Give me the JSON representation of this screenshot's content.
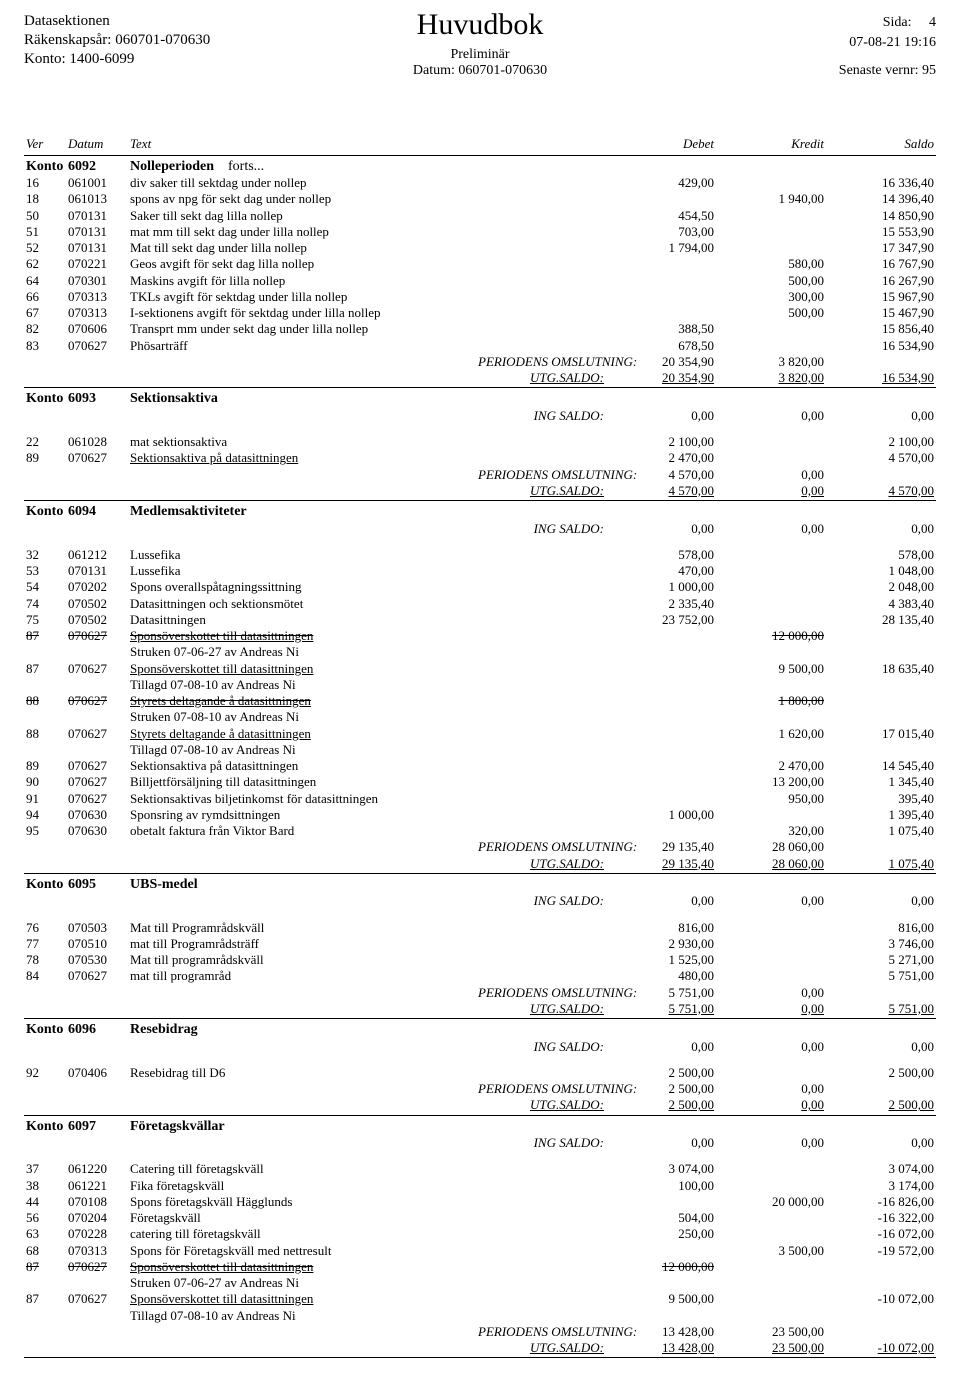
{
  "header": {
    "org": "Datasektionen",
    "year": "Räkenskapsår: 060701-070630",
    "acct": "Konto: 1400-6099",
    "title": "Huvudbok",
    "sub": "Preliminär",
    "date_label": "Datum: 060701-070630",
    "side_label": "Sida:",
    "side_no": "4",
    "timestamp": "07-08-21  19:16",
    "vernr": "Senaste vernr: 95"
  },
  "cols": {
    "ver": "Ver",
    "datum": "Datum",
    "text": "Text",
    "debet": "Debet",
    "kredit": "Kredit",
    "saldo": "Saldo"
  },
  "labels": {
    "ing": "ING SALDO:",
    "per": "PERIODENS OMSLUTNING:",
    "utg": "UTG.SALDO:",
    "konto": "Konto",
    "forts": "forts..."
  },
  "accounts": [
    {
      "no": "6092",
      "name": "Nolleperioden",
      "forts": true,
      "ing": null,
      "rows": [
        {
          "v": "16",
          "d": "061001",
          "t": "div saker till sektdag under nollep",
          "deb": "429,00",
          "kre": "",
          "sal": "16 336,40"
        },
        {
          "v": "18",
          "d": "061013",
          "t": "spons av npg för sekt dag under nollep",
          "deb": "",
          "kre": "1 940,00",
          "sal": "14 396,40"
        },
        {
          "v": "50",
          "d": "070131",
          "t": "Saker till sekt dag lilla nollep",
          "deb": "454,50",
          "kre": "",
          "sal": "14 850,90"
        },
        {
          "v": "51",
          "d": "070131",
          "t": "mat mm till sekt dag under lilla nollep",
          "deb": "703,00",
          "kre": "",
          "sal": "15 553,90"
        },
        {
          "v": "52",
          "d": "070131",
          "t": "Mat till sekt dag under lilla nollep",
          "deb": "1 794,00",
          "kre": "",
          "sal": "17 347,90"
        },
        {
          "v": "62",
          "d": "070221",
          "t": "Geos avgift för sekt dag lilla nollep",
          "deb": "",
          "kre": "580,00",
          "sal": "16 767,90"
        },
        {
          "v": "64",
          "d": "070301",
          "t": "Maskins avgift för lilla nollep",
          "deb": "",
          "kre": "500,00",
          "sal": "16 267,90"
        },
        {
          "v": "66",
          "d": "070313",
          "t": "TKLs avgift för sektdag under lilla nollep",
          "deb": "",
          "kre": "300,00",
          "sal": "15 967,90"
        },
        {
          "v": "67",
          "d": "070313",
          "t": "I-sektionens avgift för sektdag under lilla nollep",
          "deb": "",
          "kre": "500,00",
          "sal": "15 467,90"
        },
        {
          "v": "82",
          "d": "070606",
          "t": "Transprt mm under sekt dag under lilla nollep",
          "deb": "388,50",
          "kre": "",
          "sal": "15 856,40"
        },
        {
          "v": "83",
          "d": "070627",
          "t": "Phösarträff",
          "deb": "678,50",
          "kre": "",
          "sal": "16 534,90"
        }
      ],
      "per": {
        "deb": "20 354,90",
        "kre": "3 820,00"
      },
      "utg": {
        "deb": "20 354,90",
        "kre": "3 820,00",
        "sal": "16 534,90"
      }
    },
    {
      "no": "6093",
      "name": "Sektionsaktiva",
      "ing": {
        "deb": "0,00",
        "kre": "0,00",
        "sal": "0,00"
      },
      "rows": [
        {
          "v": "22",
          "d": "061028",
          "t": "mat sektionsaktiva",
          "deb": "2 100,00",
          "kre": "",
          "sal": "2 100,00"
        },
        {
          "v": "89",
          "d": "070627",
          "t": "Sektionsaktiva på datasittningen",
          "deb": "2 470,00",
          "kre": "",
          "sal": "4 570,00",
          "ul": true
        }
      ],
      "per": {
        "deb": "4 570,00",
        "kre": "0,00"
      },
      "utg": {
        "deb": "4 570,00",
        "kre": "0,00",
        "sal": "4 570,00"
      }
    },
    {
      "no": "6094",
      "name": "Medlemsaktiviteter",
      "ing": {
        "deb": "0,00",
        "kre": "0,00",
        "sal": "0,00"
      },
      "rows": [
        {
          "v": "32",
          "d": "061212",
          "t": "Lussefika",
          "deb": "578,00",
          "kre": "",
          "sal": "578,00"
        },
        {
          "v": "53",
          "d": "070131",
          "t": "Lussefika",
          "deb": "470,00",
          "kre": "",
          "sal": "1 048,00"
        },
        {
          "v": "54",
          "d": "070202",
          "t": "Spons overallspåtagningssittning",
          "deb": "1 000,00",
          "kre": "",
          "sal": "2 048,00"
        },
        {
          "v": "74",
          "d": "070502",
          "t": "Datasittningen och sektionsmötet",
          "deb": "2 335,40",
          "kre": "",
          "sal": "4 383,40"
        },
        {
          "v": "75",
          "d": "070502",
          "t": "Datasittningen",
          "deb": "23 752,00",
          "kre": "",
          "sal": "28 135,40"
        },
        {
          "v": "87",
          "d": "070627",
          "t": "Sponsöverskottet till datasittningen",
          "deb": "",
          "kre": "12 000,00",
          "sal": "",
          "strike": true,
          "ul": true
        },
        {
          "note": true,
          "t": "Struken 07-06-27 av Andreas Ni"
        },
        {
          "v": "87",
          "d": "070627",
          "t": "Sponsöverskottet till datasittningen",
          "deb": "",
          "kre": "9 500,00",
          "sal": "18 635,40",
          "ul": true
        },
        {
          "note": true,
          "t": "Tillagd 07-08-10 av Andreas Ni"
        },
        {
          "v": "88",
          "d": "070627",
          "t": "Styrets deltagande å datasittningen",
          "deb": "",
          "kre": "1 800,00",
          "sal": "",
          "strike": true,
          "ul": true
        },
        {
          "note": true,
          "t": "Struken 07-08-10 av Andreas Ni"
        },
        {
          "v": "88",
          "d": "070627",
          "t": "Styrets deltagande å datasittningen",
          "deb": "",
          "kre": "1 620,00",
          "sal": "17 015,40",
          "ul": true
        },
        {
          "note": true,
          "t": "Tillagd 07-08-10 av Andreas Ni"
        },
        {
          "v": "89",
          "d": "070627",
          "t": "Sektionsaktiva på datasittningen",
          "deb": "",
          "kre": "2 470,00",
          "sal": "14 545,40"
        },
        {
          "v": "90",
          "d": "070627",
          "t": "Billjettförsäljning till datasittningen",
          "deb": "",
          "kre": "13 200,00",
          "sal": "1 345,40"
        },
        {
          "v": "91",
          "d": "070627",
          "t": "Sektionsaktivas biljetinkomst för datasittningen",
          "deb": "",
          "kre": "950,00",
          "sal": "395,40"
        },
        {
          "v": "94",
          "d": "070630",
          "t": "Sponsring av rymdsittningen",
          "deb": "1 000,00",
          "kre": "",
          "sal": "1 395,40"
        },
        {
          "v": "95",
          "d": "070630",
          "t": "obetalt faktura från Viktor Bard",
          "deb": "",
          "kre": "320,00",
          "sal": "1 075,40"
        }
      ],
      "per": {
        "deb": "29 135,40",
        "kre": "28 060,00"
      },
      "utg": {
        "deb": "29 135,40",
        "kre": "28 060,00",
        "sal": "1 075,40"
      }
    },
    {
      "no": "6095",
      "name": "UBS-medel",
      "ing": {
        "deb": "0,00",
        "kre": "0,00",
        "sal": "0,00"
      },
      "rows": [
        {
          "v": "76",
          "d": "070503",
          "t": "Mat till Programrådskväll",
          "deb": "816,00",
          "kre": "",
          "sal": "816,00"
        },
        {
          "v": "77",
          "d": "070510",
          "t": "mat till Programrådsträff",
          "deb": "2 930,00",
          "kre": "",
          "sal": "3 746,00"
        },
        {
          "v": "78",
          "d": "070530",
          "t": "Mat till programrådskväll",
          "deb": "1 525,00",
          "kre": "",
          "sal": "5 271,00"
        },
        {
          "v": "84",
          "d": "070627",
          "t": "mat till programråd",
          "deb": "480,00",
          "kre": "",
          "sal": "5 751,00"
        }
      ],
      "per": {
        "deb": "5 751,00",
        "kre": "0,00"
      },
      "utg": {
        "deb": "5 751,00",
        "kre": "0,00",
        "sal": "5 751,00"
      }
    },
    {
      "no": "6096",
      "name": "Resebidrag",
      "ing": {
        "deb": "0,00",
        "kre": "0,00",
        "sal": "0,00"
      },
      "rows": [
        {
          "v": "92",
          "d": "070406",
          "t": "Resebidrag till D6",
          "deb": "2 500,00",
          "kre": "",
          "sal": "2 500,00"
        }
      ],
      "per": {
        "deb": "2 500,00",
        "kre": "0,00"
      },
      "utg": {
        "deb": "2 500,00",
        "kre": "0,00",
        "sal": "2 500,00"
      }
    },
    {
      "no": "6097",
      "name": "Företagskvällar",
      "ing": {
        "deb": "0,00",
        "kre": "0,00",
        "sal": "0,00"
      },
      "rows": [
        {
          "v": "37",
          "d": "061220",
          "t": "Catering till företagskväll",
          "deb": "3 074,00",
          "kre": "",
          "sal": "3 074,00"
        },
        {
          "v": "38",
          "d": "061221",
          "t": "Fika företagskväll",
          "deb": "100,00",
          "kre": "",
          "sal": "3 174,00"
        },
        {
          "v": "44",
          "d": "070108",
          "t": "Spons företagskväll Hägglunds",
          "deb": "",
          "kre": "20 000,00",
          "sal": "-16 826,00"
        },
        {
          "v": "56",
          "d": "070204",
          "t": "Företagskväll",
          "deb": "504,00",
          "kre": "",
          "sal": "-16 322,00"
        },
        {
          "v": "63",
          "d": "070228",
          "t": "catering till företagskväll",
          "deb": "250,00",
          "kre": "",
          "sal": "-16 072,00"
        },
        {
          "v": "68",
          "d": "070313",
          "t": "Spons för Företagskväll med nettresult",
          "deb": "",
          "kre": "3 500,00",
          "sal": "-19 572,00"
        },
        {
          "v": "87",
          "d": "070627",
          "t": "Sponsöverskottet till datasittningen",
          "deb": "12 000,00",
          "kre": "",
          "sal": "",
          "strike": true,
          "ul": true
        },
        {
          "note": true,
          "t": "Struken 07-06-27 av Andreas Ni"
        },
        {
          "v": "87",
          "d": "070627",
          "t": "Sponsöverskottet till datasittningen",
          "deb": "9 500,00",
          "kre": "",
          "sal": "-10 072,00",
          "ul": true
        },
        {
          "note": true,
          "t": "Tillagd 07-08-10 av Andreas Ni"
        }
      ],
      "per": {
        "deb": "13 428,00",
        "kre": "23 500,00"
      },
      "utg": {
        "deb": "13 428,00",
        "kre": "23 500,00",
        "sal": "-10 072,00"
      }
    }
  ]
}
